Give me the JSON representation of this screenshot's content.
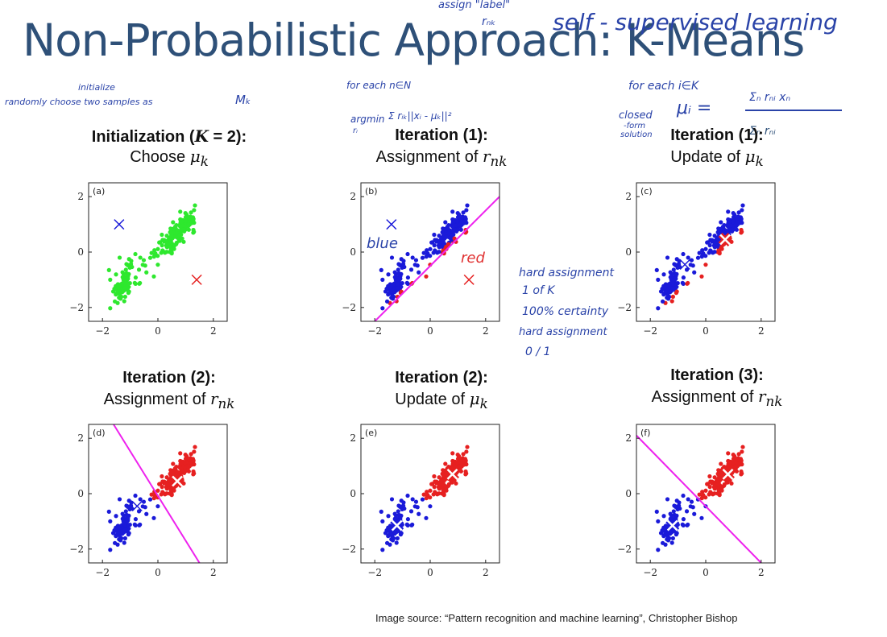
{
  "slide": {
    "title": "Non-Probabilistic Approach: K-Means",
    "caption": "Image source: “Pattern recognition and machine learning”, Christopher Bishop"
  },
  "annotations": {
    "assign_label": "assign \"label\"",
    "r_nk": "rₙₖ",
    "self_supervised": "self - supervised learning",
    "initialize": "initialize",
    "randomly": "randomly choose two samples as",
    "mu_k": "Mₖ",
    "for_each_n": "for each n∈N",
    "argmin": "argmin",
    "argmin_expr": "Σ rᵢₖ||xᵢ - μₖ||²",
    "argmin_sub": "rᵢ",
    "for_each_k": "for each i∈K",
    "mu_i_eq": "μᵢ =",
    "mu_num": "Σₙ rₙᵢ xₙ",
    "mu_den": "Σₙ rₙᵢ",
    "closed": "closed",
    "form": "-form",
    "solution": "solution",
    "blue": "blue",
    "red": "red",
    "hard1": "hard assignment",
    "hard2": "1 of K",
    "hard3": "100% certainty",
    "hard4": "hard assignment",
    "hard5": "0 / 1"
  },
  "panels": [
    {
      "tag": "(a)",
      "head1": "Initialization (",
      "head1_var": "K",
      "head1_rest": " = 2):",
      "head2": "Choose ",
      "head2_var": "μ",
      "head2_sub": "k",
      "colon2": ""
    },
    {
      "tag": "(b)",
      "head1": "Iteration (1)",
      "head1_var": "",
      "head1_rest": ":",
      "head2": "Assignment of ",
      "head2_var": "r",
      "head2_sub": "nk",
      "colon2": ""
    },
    {
      "tag": "(c)",
      "head1": "Iteration (1)",
      "head1_var": "",
      "head1_rest": ":",
      "head2": "Update of ",
      "head2_var": "μ",
      "head2_sub": "k",
      "colon2": ""
    },
    {
      "tag": "(d)",
      "head1": "Iteration (2)",
      "head1_var": "",
      "head1_rest": ":",
      "head2": "Assignment of ",
      "head2_var": "r",
      "head2_sub": "nk",
      "colon2": ""
    },
    {
      "tag": "(e)",
      "head1": "Iteration (2)",
      "head1_var": "",
      "head1_rest": ":",
      "head2": "Update of ",
      "head2_var": "μ",
      "head2_sub": "k",
      "colon2": ""
    },
    {
      "tag": "(f)",
      "head1": "Iteration (3)",
      "head1_var": "",
      "head1_rest": ":",
      "head2": "Assignment of ",
      "head2_var": "r",
      "head2_sub": "nk",
      "colon2": ""
    }
  ],
  "chart_data": [
    {
      "type": "scatter",
      "panel": "(a)",
      "xlim": [
        -2.5,
        2.5
      ],
      "ylim": [
        -2.5,
        2.5
      ],
      "xticks": [
        "−2",
        "0",
        "2"
      ],
      "yticks": [
        "−2",
        "0",
        "2"
      ],
      "colors": {
        "green": "#2ee82e",
        "blue": "#1a1ad9",
        "red": "#e62020",
        "line": "#ee22ee"
      },
      "point_color_rule": "all-green",
      "centroids": [
        {
          "x": -1.4,
          "y": 1.0,
          "color": "blue",
          "style": "plain"
        },
        {
          "x": 1.4,
          "y": -1.0,
          "color": "red",
          "style": "plain"
        }
      ],
      "boundary": null
    },
    {
      "type": "scatter",
      "panel": "(b)",
      "xlim": [
        -2.5,
        2.5
      ],
      "ylim": [
        -2.5,
        2.5
      ],
      "xticks": [
        "−2",
        "0",
        "2"
      ],
      "yticks": [
        "−2",
        "0",
        "2"
      ],
      "point_color_rule": "x-y",
      "centroids": [
        {
          "x": -1.4,
          "y": 1.0,
          "color": "blue",
          "style": "plain"
        },
        {
          "x": 1.4,
          "y": -1.0,
          "color": "red",
          "style": "plain"
        }
      ],
      "boundary": [
        [
          -2.0,
          -2.5
        ],
        [
          2.5,
          2.0
        ]
      ]
    },
    {
      "type": "scatter",
      "panel": "(c)",
      "xlim": [
        -2.5,
        2.5
      ],
      "ylim": [
        -2.5,
        2.5
      ],
      "xticks": [
        "−2",
        "0",
        "2"
      ],
      "yticks": [
        "−2",
        "0",
        "2"
      ],
      "point_color_rule": "x-y",
      "centroids": [
        {
          "x": -0.75,
          "y": -0.45,
          "color": "blue",
          "style": "plain"
        },
        {
          "x": 0.7,
          "y": 0.45,
          "color": "red",
          "style": "bold"
        }
      ],
      "boundary": null
    },
    {
      "type": "scatter",
      "panel": "(d)",
      "xlim": [
        -2.5,
        2.5
      ],
      "ylim": [
        -2.5,
        2.5
      ],
      "xticks": [
        "−2",
        "0",
        "2"
      ],
      "yticks": [
        "−2",
        "0",
        "2"
      ],
      "point_color_rule": "x+y",
      "centroids": [
        {
          "x": -0.75,
          "y": -0.45,
          "color": "blue",
          "style": "plain"
        },
        {
          "x": 0.7,
          "y": 0.45,
          "color": "red",
          "style": "bold"
        }
      ],
      "boundary": [
        [
          -1.6,
          2.5
        ],
        [
          1.5,
          -2.5
        ]
      ]
    },
    {
      "type": "scatter",
      "panel": "(e)",
      "xlim": [
        -2.5,
        2.5
      ],
      "ylim": [
        -2.5,
        2.5
      ],
      "xticks": [
        "−2",
        "0",
        "2"
      ],
      "yticks": [
        "−2",
        "0",
        "2"
      ],
      "point_color_rule": "x+y",
      "centroids": [
        {
          "x": -1.2,
          "y": -1.15,
          "color": "blue",
          "style": "bold"
        },
        {
          "x": 0.8,
          "y": 0.7,
          "color": "red",
          "style": "bold"
        }
      ],
      "boundary": null
    },
    {
      "type": "scatter",
      "panel": "(f)",
      "xlim": [
        -2.5,
        2.5
      ],
      "ylim": [
        -2.5,
        2.5
      ],
      "xticks": [
        "−2",
        "0",
        "2"
      ],
      "yticks": [
        "−2",
        "0",
        "2"
      ],
      "point_color_rule": "x+y",
      "centroids": [
        {
          "x": -1.2,
          "y": -1.15,
          "color": "blue",
          "style": "bold"
        },
        {
          "x": 0.8,
          "y": 0.7,
          "color": "red",
          "style": "bold"
        }
      ],
      "boundary": [
        [
          -2.5,
          2.1
        ],
        [
          2.0,
          -2.5
        ]
      ]
    }
  ]
}
